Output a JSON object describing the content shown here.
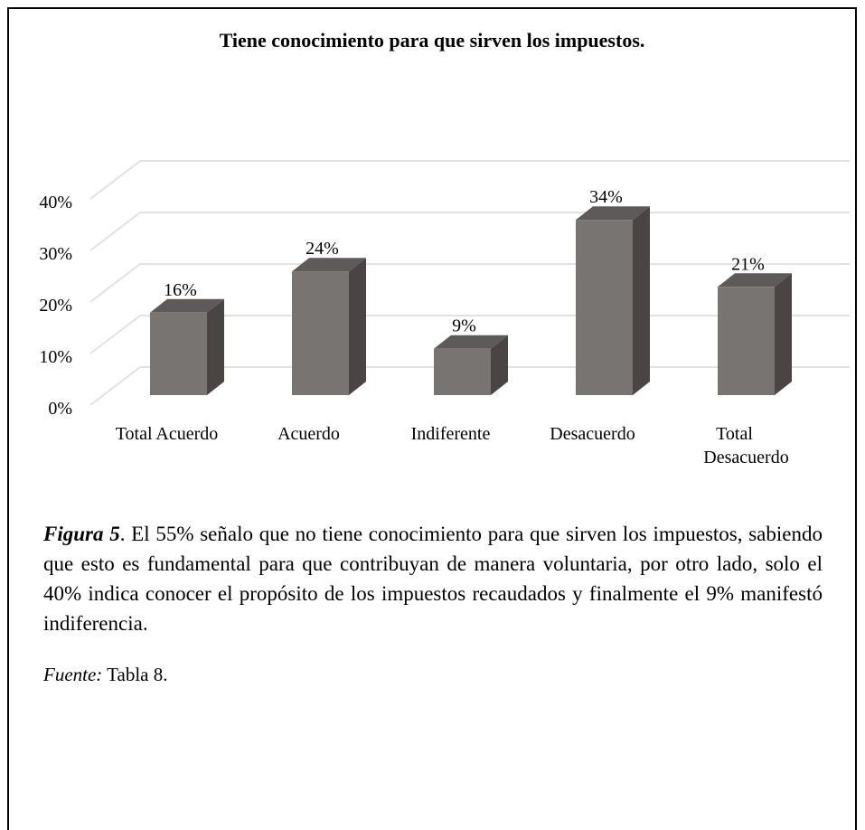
{
  "chart_data": {
    "type": "bar3d",
    "title": "Tiene conocimiento para que sirven los impuestos.",
    "categories": [
      "Total Acuerdo",
      "Acuerdo",
      "Indiferente",
      "Desacuerdo",
      "Total Desacuerdo"
    ],
    "values": [
      16,
      24,
      9,
      34,
      21
    ],
    "value_labels": [
      "16%",
      "24%",
      "9%",
      "34%",
      "21%"
    ],
    "color": "#787472",
    "ylim": [
      0,
      40
    ],
    "yticks": [
      {
        "value": 0,
        "label": "0%"
      },
      {
        "value": 10,
        "label": "10%"
      },
      {
        "value": 20,
        "label": "20%"
      },
      {
        "value": 30,
        "label": "30%"
      },
      {
        "value": 40,
        "label": "40%"
      }
    ],
    "grid": true
  },
  "caption": {
    "label": "Figura 5",
    "text": ". El 55% señalo que no tiene conocimiento para que sirven los impuestos, sabiendo que esto es fundamental para que contribuyan de manera voluntaria, por otro lado, solo el 40% indica conocer el propósito de los impuestos recaudados y finalmente el 9% manifestó indiferencia."
  },
  "source": {
    "label": "Fuente:",
    "text": " Tabla 8."
  }
}
